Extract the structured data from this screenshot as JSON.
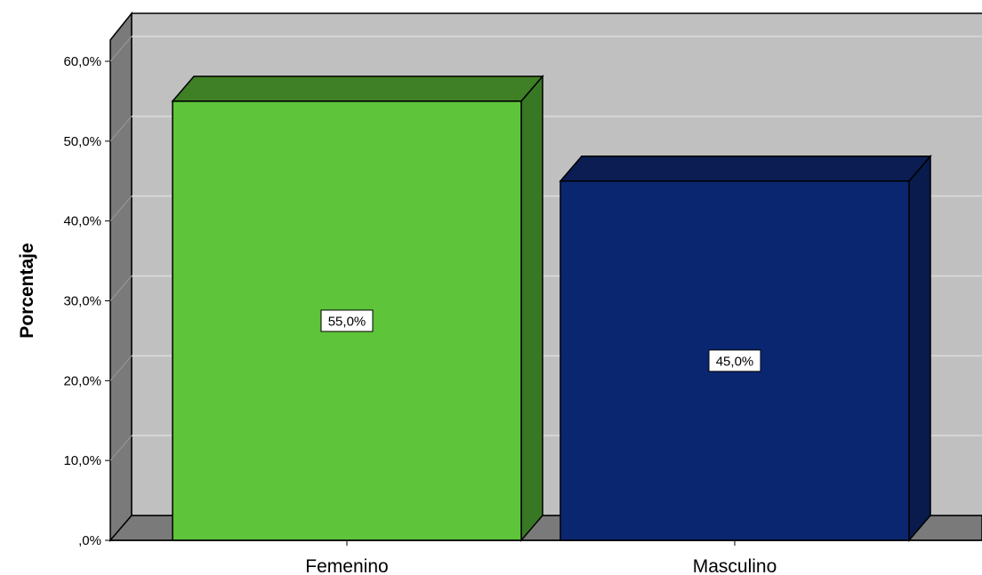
{
  "chart_data": {
    "type": "bar",
    "style": "3d",
    "categories": [
      "Femenino",
      "Masculino"
    ],
    "values": [
      55.0,
      45.0
    ],
    "data_labels": [
      "55,0%",
      "45,0%"
    ],
    "bar_colors": [
      "#5ec43a",
      "#0b2670"
    ],
    "bar_side_colors": [
      "#387825",
      "#091b4d"
    ],
    "bar_top_colors": [
      "#3f7f26",
      "#0b1d52"
    ],
    "title": "",
    "xlabel": "",
    "ylabel": "Porcentaje",
    "ylim": [
      0,
      60
    ],
    "y_ticks": [
      0,
      10,
      20,
      30,
      40,
      50,
      60
    ],
    "y_tick_labels": [
      ",0%",
      "10,0%",
      "20,0%",
      "30,0%",
      "40,0%",
      "50,0%",
      "60,0%"
    ],
    "grid": true,
    "legend": "none",
    "plot_background": "#c0c0c0",
    "wall_color": "#7a7a7a"
  }
}
